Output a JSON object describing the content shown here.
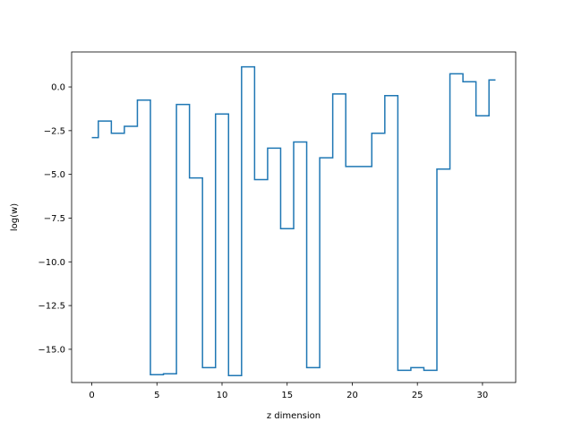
{
  "chart_data": {
    "type": "line",
    "drawstyle": "steps-mid",
    "title": "",
    "xlabel": "z dimension",
    "ylabel": "log(w)",
    "xlim": [
      -1.55,
      32.55
    ],
    "ylim": [
      -16.9,
      2.0
    ],
    "xticks": [
      0,
      5,
      10,
      15,
      20,
      25,
      30
    ],
    "xtick_labels": [
      "0",
      "5",
      "10",
      "15",
      "20",
      "25",
      "30"
    ],
    "yticks": [
      0.0,
      -2.5,
      -5.0,
      -7.5,
      -10.0,
      -12.5,
      -15.0
    ],
    "ytick_labels": [
      "0.0",
      "−2.5",
      "−5.0",
      "−7.5",
      "−10.0",
      "−12.5",
      "−15.0"
    ],
    "grid": false,
    "legend": "none",
    "series": [
      {
        "color": "#1f77b4",
        "x": [
          0,
          1,
          2,
          3,
          4,
          5,
          6,
          7,
          8,
          9,
          10,
          11,
          12,
          13,
          14,
          15,
          16,
          17,
          18,
          19,
          20,
          21,
          22,
          23,
          24,
          25,
          26,
          27,
          28,
          29,
          30,
          31
        ],
        "y": [
          -2.9,
          -1.95,
          -2.65,
          -2.25,
          -0.75,
          -16.45,
          -16.4,
          -1.0,
          -5.2,
          -16.05,
          -1.55,
          -16.5,
          1.15,
          -5.3,
          -3.5,
          -8.1,
          -3.15,
          -16.05,
          -4.05,
          -0.4,
          -4.55,
          -4.55,
          -2.65,
          -0.5,
          -16.2,
          -16.05,
          -16.2,
          -4.7,
          0.75,
          0.3,
          -1.65,
          0.4
        ]
      }
    ]
  }
}
